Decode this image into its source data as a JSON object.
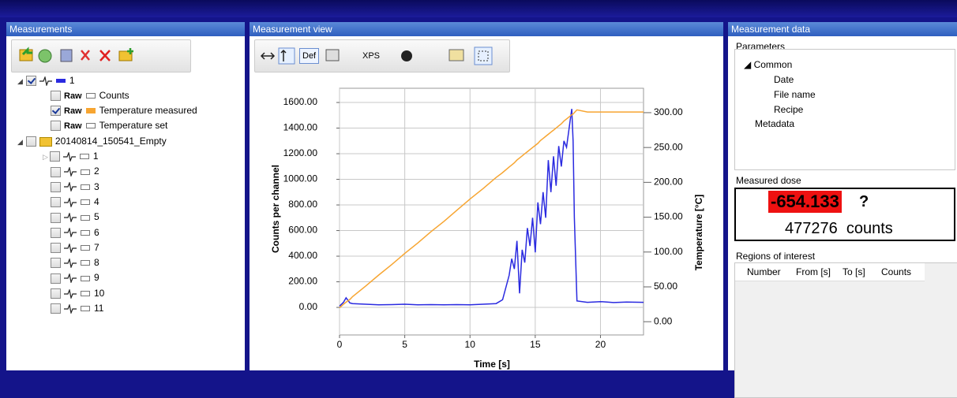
{
  "measurements": {
    "title": "Measurements",
    "root": "1",
    "channels": [
      {
        "tag": "Raw",
        "name": "Counts"
      },
      {
        "tag": "Raw",
        "name": "Temperature measured"
      },
      {
        "tag": "Raw",
        "name": "Temperature set"
      }
    ],
    "folder": "20140814_150541_Empty",
    "items": [
      "1",
      "2",
      "3",
      "4",
      "5",
      "6",
      "7",
      "8",
      "9",
      "10",
      "11"
    ]
  },
  "view": {
    "title": "Measurement view",
    "toolbar": [
      "Def",
      "XPS"
    ]
  },
  "data_panel": {
    "title": "Measurement data",
    "parameters": {
      "title": "Parameters",
      "group": "Common",
      "fields": [
        "Date",
        "File name",
        "Recipe"
      ],
      "other": "Metadata"
    },
    "dose": {
      "title": "Measured dose",
      "value": "-654.133",
      "flag": "?",
      "counts": "477276",
      "unit": "counts"
    },
    "regions": {
      "title": "Regions of interest",
      "columns": [
        "Number",
        "From [s]",
        "To [s]",
        "Counts"
      ]
    }
  },
  "chart_data": {
    "type": "line",
    "x_label": "Time [s]",
    "y_label": "Counts per channel",
    "y2_label": "Temperature [°C]",
    "x": [
      0,
      0.3,
      0.5,
      0.8,
      1,
      2,
      3,
      4,
      5,
      6,
      7,
      8,
      9,
      10,
      11,
      12,
      12.5,
      13,
      13.2,
      13.4,
      13.6,
      13.8,
      14,
      14.2,
      14.4,
      14.6,
      14.8,
      15,
      15.2,
      15.4,
      15.6,
      15.8,
      16,
      16.2,
      16.4,
      16.6,
      16.8,
      17,
      17.2,
      17.4,
      17.6,
      17.8,
      17.9,
      18,
      18.2,
      19,
      20,
      21,
      22,
      23.3
    ],
    "series": [
      {
        "name": "Counts",
        "color": "#2a2ae0",
        "axis": "y",
        "values": [
          10,
          40,
          75,
          35,
          30,
          25,
          20,
          22,
          25,
          20,
          22,
          20,
          22,
          20,
          25,
          30,
          60,
          250,
          380,
          300,
          520,
          110,
          450,
          350,
          620,
          480,
          700,
          430,
          820,
          650,
          900,
          700,
          1150,
          900,
          1180,
          950,
          1260,
          1100,
          1300,
          1250,
          1400,
          1550,
          1300,
          700,
          50,
          40,
          45,
          38,
          42,
          40
        ]
      },
      {
        "name": "Temperature measured",
        "color": "#f7a531",
        "axis": "y2",
        "values": [
          20,
          25,
          28,
          32,
          36,
          51,
          67,
          82,
          98,
          113,
          129,
          144,
          160,
          176,
          191,
          207,
          214,
          222,
          225,
          228,
          232,
          235,
          238,
          241,
          244,
          247,
          250,
          253,
          256,
          260,
          263,
          266,
          269,
          272,
          275,
          278,
          281,
          284,
          288,
          291,
          294,
          297,
          298,
          300,
          304,
          301,
          301,
          301,
          301,
          301
        ]
      }
    ],
    "xlim": [
      0,
      23.3
    ],
    "xticks": [
      0,
      5,
      10,
      15,
      20
    ],
    "ylim": [
      -215,
      1711
    ],
    "yticks": [
      {
        "value": 0,
        "label": "0.00"
      },
      {
        "value": 200,
        "label": "200.00"
      },
      {
        "value": 400,
        "label": "400.00"
      },
      {
        "value": 600,
        "label": "600.00"
      },
      {
        "value": 800,
        "label": "800.00"
      },
      {
        "value": 1000,
        "label": "1000.00"
      },
      {
        "value": 1200,
        "label": "1200.00"
      },
      {
        "value": 1400,
        "label": "1400.00"
      },
      {
        "value": 1600,
        "label": "1600.00"
      }
    ],
    "y2lim": [
      -19,
      335
    ],
    "y2ticks": [
      {
        "value": 0,
        "label": "0.00"
      },
      {
        "value": 50,
        "label": "50.00"
      },
      {
        "value": 100,
        "label": "100.00"
      },
      {
        "value": 150,
        "label": "150.00"
      },
      {
        "value": 200,
        "label": "200.00"
      },
      {
        "value": 250,
        "label": "250.00"
      },
      {
        "value": 300,
        "label": "300.00"
      }
    ],
    "grid": true
  }
}
